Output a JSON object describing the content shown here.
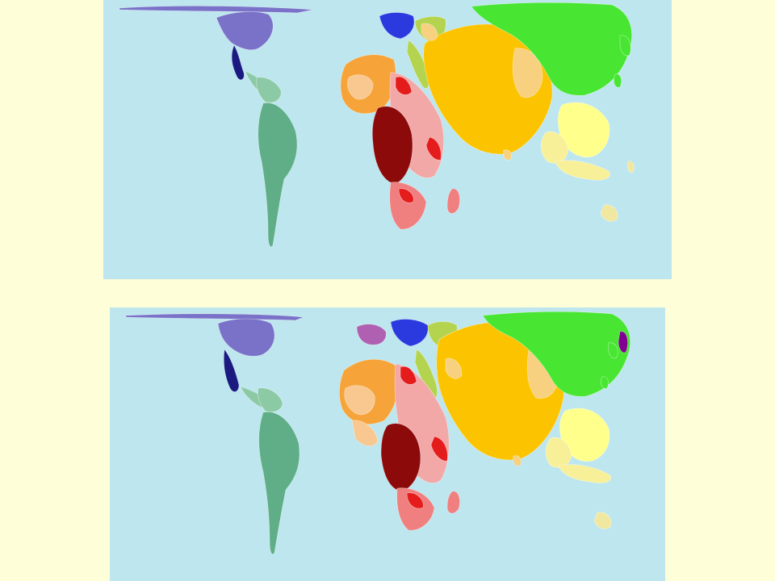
{
  "slide": {
    "background": "#fefed8"
  },
  "maps": [
    {
      "id": "top",
      "kind": "cartogram-world-map",
      "ocean_color": "#bde6ee"
    },
    {
      "id": "bottom",
      "kind": "cartogram-world-map",
      "ocean_color": "#bde6ee"
    }
  ],
  "region_colors": {
    "north-america": "#7a72c8",
    "central-america": "#1a1a80",
    "south-america": "#5fae88",
    "south-america-light": "#8ccaa6",
    "western-europe": "#b060b0",
    "eastern-europe": "#2a3adf",
    "north-africa": "#f6a43a",
    "north-africa-light": "#f8c890",
    "central-africa": "#8c0a0a",
    "east-africa": "#f3a8a8",
    "east-africa-accent": "#e51c1c",
    "southern-africa": "#f08080",
    "middle-east": "#b4d450",
    "south-asia": "#fcc400",
    "south-asia-light": "#f7d080",
    "east-asia": "#48e632",
    "southeast-asia": "#ffff8c",
    "southeast-asia-accent": "#f8f098",
    "japan": "#800090",
    "oceania": "#f0e8a0"
  }
}
